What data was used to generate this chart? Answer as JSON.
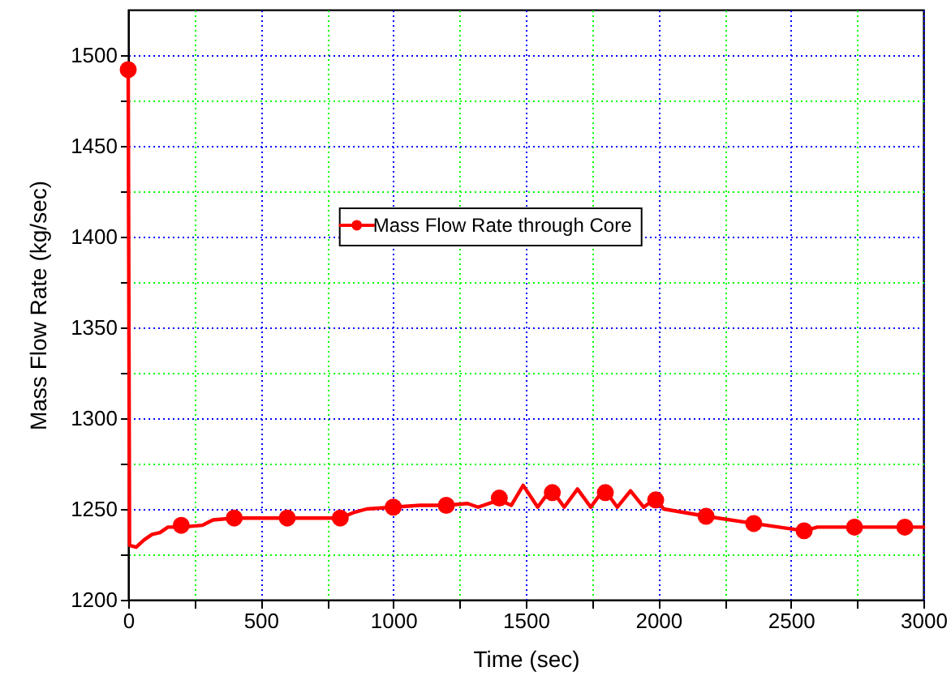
{
  "chart_data": {
    "type": "line",
    "xlabel": "Time (sec)",
    "ylabel": "Mass Flow Rate (kg/sec)",
    "xlim": [
      0,
      3000
    ],
    "xticks": [
      0,
      {
        "value": 250,
        "label": null
      },
      500,
      {
        "value": 750,
        "label": null
      },
      1000,
      {
        "value": 1250,
        "label": null
      },
      1500,
      {
        "value": 1750,
        "label": null
      },
      2000,
      {
        "value": 2250,
        "label": null
      },
      2500,
      {
        "value": 2750,
        "label": null
      },
      3000
    ],
    "ylim": [
      1200,
      1525
    ],
    "yticks": [
      1200,
      {
        "value": 1225,
        "label": null
      },
      1250,
      {
        "value": 1275,
        "label": null
      },
      1300,
      {
        "value": 1325,
        "label": null
      },
      1350,
      {
        "value": 1375,
        "label": null
      },
      1400,
      {
        "value": 1425,
        "label": null
      },
      1450,
      {
        "value": 1475,
        "label": null
      },
      1500
    ],
    "grid": true,
    "legend": "top",
    "line_style": "solid",
    "series": [
      {
        "name": "Mass Flow Rate through Core",
        "marker": "none",
        "color": "#ff0000",
        "x": [
          0,
          5,
          30,
          60,
          90,
          120,
          150,
          200,
          280,
          320,
          400,
          500,
          600,
          800,
          850,
          900,
          1000,
          1100,
          1200,
          1280,
          1320,
          1400,
          1445,
          1490,
          1545,
          1595,
          1645,
          1695,
          1745,
          1795,
          1845,
          1895,
          1945,
          1990,
          2020,
          2180,
          2360,
          2550,
          2600,
          2740,
          2930,
          3000
        ],
        "values": [
          1492,
          1230,
          1229,
          1233,
          1236,
          1237,
          1240,
          1240,
          1241,
          1244,
          1245,
          1245,
          1245,
          1245,
          1248,
          1250,
          1251,
          1252,
          1252,
          1253,
          1251,
          1255,
          1252,
          1263,
          1251,
          1261,
          1251,
          1261,
          1251,
          1261,
          1251,
          1260,
          1251,
          1256,
          1250,
          1246,
          1242,
          1238,
          1240,
          1240,
          1240,
          1240
        ]
      },
      {
        "type": "scatter",
        "marker": "circle",
        "color": "#ff0000",
        "x": [
          0,
          200,
          400,
          600,
          800,
          1000,
          1200,
          1400,
          1600,
          1800,
          1990,
          2180,
          2360,
          2550,
          2740,
          2930
        ],
        "values": [
          1492,
          1241,
          1245,
          1245,
          1245,
          1251,
          1252,
          1256,
          1259,
          1259,
          1255,
          1246,
          1242,
          1238,
          1240,
          1240
        ]
      }
    ]
  }
}
